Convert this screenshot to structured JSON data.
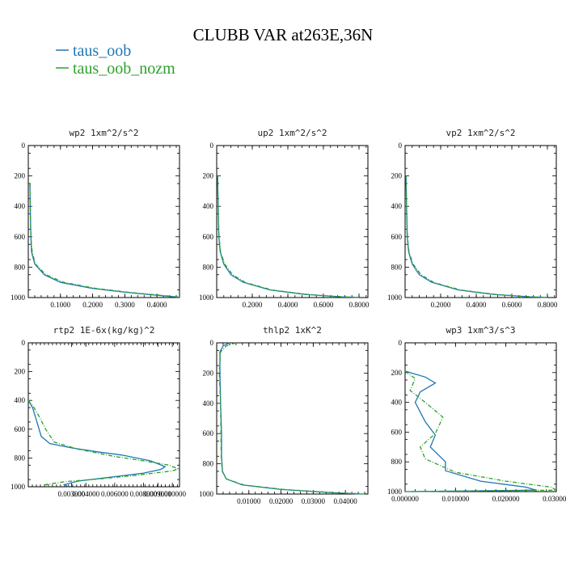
{
  "figure": {
    "title": "CLUBB VAR at263E,36N",
    "legend": [
      {
        "label": "taus_oob",
        "color": "#1f77b4",
        "dash": "solid"
      },
      {
        "label": "taus_oob_nozm",
        "color": "#2ca02c",
        "dash": "dashdot"
      }
    ]
  },
  "chart_data": [
    {
      "type": "line",
      "title": "wp2   1xm^2/s^2",
      "xlim": [
        0,
        0.47
      ],
      "ylim": [
        1000,
        0
      ],
      "xticks": [
        0.1,
        0.2,
        0.3,
        0.4
      ],
      "xtick_labels": [
        "0.1000",
        "0.2000",
        "0.3000",
        "0.4000"
      ],
      "yticks": [
        0,
        200,
        400,
        600,
        800,
        1000
      ],
      "ytick_labels": [
        "0",
        "200",
        "400",
        "600",
        "800",
        "1000"
      ],
      "series": [
        {
          "name": "taus_oob",
          "points": [
            [
              0.005,
              250
            ],
            [
              0.006,
              400
            ],
            [
              0.008,
              600
            ],
            [
              0.01,
              700
            ],
            [
              0.02,
              780
            ],
            [
              0.05,
              850
            ],
            [
              0.1,
              900
            ],
            [
              0.2,
              940
            ],
            [
              0.3,
              965
            ],
            [
              0.4,
              985
            ],
            [
              0.47,
              998
            ]
          ]
        },
        {
          "name": "taus_oob_nozm",
          "points": [
            [
              0.005,
              250
            ],
            [
              0.006,
              400
            ],
            [
              0.008,
              600
            ],
            [
              0.012,
              700
            ],
            [
              0.022,
              780
            ],
            [
              0.055,
              850
            ],
            [
              0.11,
              900
            ],
            [
              0.21,
              940
            ],
            [
              0.31,
              965
            ],
            [
              0.41,
              985
            ],
            [
              0.47,
              997
            ]
          ]
        }
      ]
    },
    {
      "type": "line",
      "title": "up2   1xm^2/s^2",
      "xlim": [
        0,
        0.85
      ],
      "ylim": [
        1000,
        0
      ],
      "xticks": [
        0.2,
        0.4,
        0.6,
        0.8
      ],
      "xtick_labels": [
        "0.2000",
        "0.4000",
        "0.6000",
        "0.8000"
      ],
      "yticks": [
        0,
        200,
        400,
        600,
        800,
        1000
      ],
      "ytick_labels": [
        "0",
        "200",
        "400",
        "600",
        "800",
        "1000"
      ],
      "series": [
        {
          "name": "taus_oob",
          "points": [
            [
              0.005,
              200
            ],
            [
              0.008,
              400
            ],
            [
              0.012,
              600
            ],
            [
              0.02,
              700
            ],
            [
              0.04,
              780
            ],
            [
              0.08,
              850
            ],
            [
              0.15,
              900
            ],
            [
              0.3,
              950
            ],
            [
              0.5,
              980
            ],
            [
              0.7,
              995
            ],
            [
              0.8,
              999
            ]
          ]
        },
        {
          "name": "taus_oob_nozm",
          "points": [
            [
              0.005,
              200
            ],
            [
              0.008,
              400
            ],
            [
              0.013,
              600
            ],
            [
              0.022,
              700
            ],
            [
              0.045,
              780
            ],
            [
              0.09,
              850
            ],
            [
              0.16,
              900
            ],
            [
              0.31,
              950
            ],
            [
              0.51,
              980
            ],
            [
              0.71,
              995
            ],
            [
              0.8,
              999
            ]
          ]
        }
      ]
    },
    {
      "type": "line",
      "title": "vp2   1xm^2/s^2",
      "xlim": [
        0,
        0.85
      ],
      "ylim": [
        1000,
        0
      ],
      "xticks": [
        0.2,
        0.4,
        0.6,
        0.8
      ],
      "xtick_labels": [
        "0.2000",
        "0.4000",
        "0.6000",
        "0.8000"
      ],
      "yticks": [
        0,
        200,
        400,
        600,
        800,
        1000
      ],
      "ytick_labels": [
        "0",
        "200",
        "400",
        "600",
        "800",
        "1000"
      ],
      "series": [
        {
          "name": "taus_oob",
          "points": [
            [
              0.005,
              200
            ],
            [
              0.008,
              400
            ],
            [
              0.012,
              600
            ],
            [
              0.02,
              700
            ],
            [
              0.04,
              780
            ],
            [
              0.08,
              850
            ],
            [
              0.15,
              900
            ],
            [
              0.3,
              950
            ],
            [
              0.5,
              980
            ],
            [
              0.7,
              995
            ],
            [
              0.8,
              999
            ]
          ]
        },
        {
          "name": "taus_oob_nozm",
          "points": [
            [
              0.005,
              200
            ],
            [
              0.008,
              400
            ],
            [
              0.013,
              600
            ],
            [
              0.022,
              700
            ],
            [
              0.045,
              780
            ],
            [
              0.09,
              850
            ],
            [
              0.16,
              900
            ],
            [
              0.31,
              950
            ],
            [
              0.51,
              980
            ],
            [
              0.71,
              995
            ],
            [
              0.8,
              999
            ]
          ]
        }
      ]
    },
    {
      "type": "line",
      "title": "rtp2   1E-6x(kg/kg)^2",
      "xlim": [
        0,
        0.0105
      ],
      "ylim": [
        1000,
        0
      ],
      "xticks": [
        0.003,
        0.004,
        0.006,
        0.008,
        0.009,
        0.01
      ],
      "xtick_labels": [
        "0.003000",
        "0.004000",
        "0.006000",
        "0.008000",
        "0.009000",
        "0.010000"
      ],
      "yticks": [
        0,
        200,
        400,
        600,
        800,
        1000
      ],
      "ytick_labels": [
        "0",
        "200",
        "400",
        "600",
        "800",
        "1000"
      ],
      "series": [
        {
          "name": "taus_oob",
          "points": [
            [
              0.0,
              400
            ],
            [
              0.0003,
              450
            ],
            [
              0.0006,
              550
            ],
            [
              0.0009,
              650
            ],
            [
              0.0015,
              700
            ],
            [
              0.003,
              730
            ],
            [
              0.005,
              760
            ],
            [
              0.0065,
              780
            ],
            [
              0.0085,
              820
            ],
            [
              0.0095,
              860
            ],
            [
              0.0092,
              880
            ],
            [
              0.008,
              905
            ],
            [
              0.006,
              930
            ],
            [
              0.0035,
              960
            ],
            [
              0.0025,
              985
            ],
            [
              0.0028,
              1000
            ]
          ]
        },
        {
          "name": "taus_oob_nozm",
          "points": [
            [
              0.0,
              400
            ],
            [
              0.0004,
              450
            ],
            [
              0.0008,
              520
            ],
            [
              0.0012,
              600
            ],
            [
              0.0018,
              690
            ],
            [
              0.0035,
              740
            ],
            [
              0.006,
              790
            ],
            [
              0.008,
              820
            ],
            [
              0.0098,
              850
            ],
            [
              0.0104,
              875
            ],
            [
              0.01,
              890
            ],
            [
              0.0075,
              920
            ],
            [
              0.005,
              945
            ],
            [
              0.0025,
              965
            ],
            [
              0.0012,
              985
            ],
            [
              0.0015,
              1000
            ]
          ]
        }
      ]
    },
    {
      "type": "line",
      "title": "thlp2   1xK^2",
      "xlim": [
        0,
        0.047
      ],
      "ylim": [
        1000,
        0
      ],
      "xticks": [
        0.01,
        0.02,
        0.03,
        0.04
      ],
      "xtick_labels": [
        "0.01000",
        "0.02000",
        "0.03000",
        "0.04000"
      ],
      "yticks": [
        0,
        200,
        400,
        600,
        800,
        1000
      ],
      "ytick_labels": [
        "0",
        "200",
        "400",
        "600",
        "800",
        "1000"
      ],
      "series": [
        {
          "name": "taus_oob",
          "points": [
            [
              0.004,
              0
            ],
            [
              0.002,
              20
            ],
            [
              0.001,
              60
            ],
            [
              0.001,
              200
            ],
            [
              0.0012,
              400
            ],
            [
              0.0015,
              600
            ],
            [
              0.0015,
              750
            ],
            [
              0.0018,
              850
            ],
            [
              0.003,
              900
            ],
            [
              0.008,
              940
            ],
            [
              0.02,
              970
            ],
            [
              0.035,
              990
            ],
            [
              0.045,
              1000
            ]
          ]
        },
        {
          "name": "taus_oob_nozm",
          "points": [
            [
              0.006,
              0
            ],
            [
              0.003,
              20
            ],
            [
              0.0012,
              60
            ],
            [
              0.0008,
              200
            ],
            [
              0.0012,
              400
            ],
            [
              0.0013,
              600
            ],
            [
              0.0014,
              750
            ],
            [
              0.0017,
              850
            ],
            [
              0.003,
              900
            ],
            [
              0.0085,
              940
            ],
            [
              0.021,
              970
            ],
            [
              0.036,
              990
            ],
            [
              0.046,
              1000
            ]
          ]
        }
      ]
    },
    {
      "type": "line",
      "title": "wp3   1xm^3/s^3",
      "xlim": [
        0,
        0.03
      ],
      "ylim": [
        1000,
        0
      ],
      "xticks": [
        0.0,
        0.01,
        0.02,
        0.03
      ],
      "xtick_labels": [
        "0.000000",
        "0.010000",
        "0.020000",
        "0.030000"
      ],
      "yticks": [
        0,
        200,
        400,
        600,
        800,
        1000
      ],
      "ytick_labels": [
        "0",
        "200",
        "400",
        "600",
        "800",
        "1000"
      ],
      "series": [
        {
          "name": "taus_oob",
          "points": [
            [
              0.0,
              190
            ],
            [
              0.004,
              230
            ],
            [
              0.006,
              270
            ],
            [
              0.003,
              330
            ],
            [
              0.002,
              400
            ],
            [
              0.004,
              530
            ],
            [
              0.006,
              620
            ],
            [
              0.005,
              700
            ],
            [
              0.008,
              800
            ],
            [
              0.008,
              860
            ],
            [
              0.015,
              930
            ],
            [
              0.024,
              970
            ],
            [
              0.026,
              990
            ],
            [
              0.0,
              1000
            ]
          ]
        },
        {
          "name": "taus_oob_nozm",
          "points": [
            [
              0.0,
              190
            ],
            [
              0.002,
              240
            ],
            [
              0.001,
              320
            ],
            [
              0.004,
              400
            ],
            [
              0.0075,
              500
            ],
            [
              0.006,
              610
            ],
            [
              0.003,
              700
            ],
            [
              0.004,
              780
            ],
            [
              0.01,
              870
            ],
            [
              0.02,
              930
            ],
            [
              0.029,
              970
            ],
            [
              0.03,
              990
            ],
            [
              0.0,
              1000
            ]
          ]
        }
      ]
    }
  ]
}
